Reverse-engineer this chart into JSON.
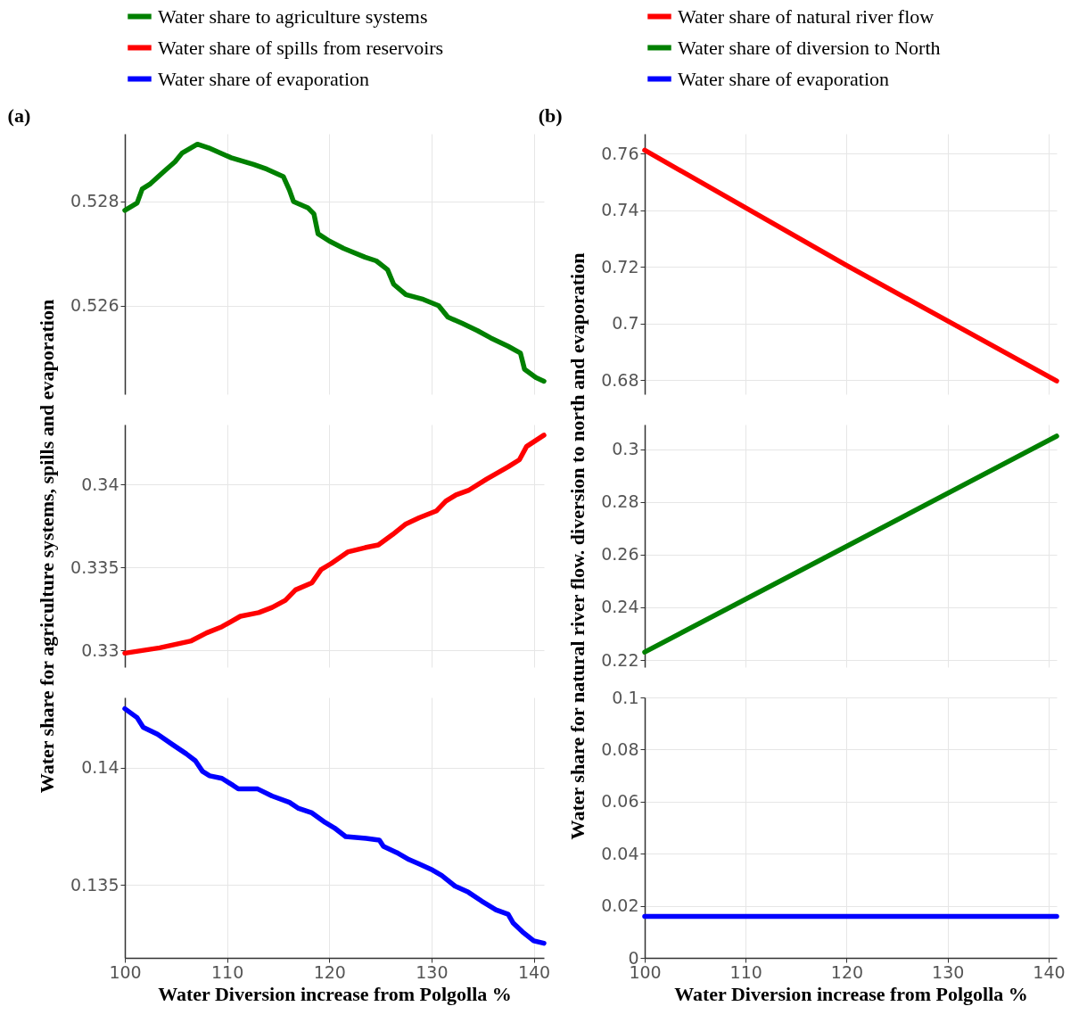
{
  "chart_data": [
    {
      "type": "line",
      "title": "(a)",
      "xlim": [
        100,
        141
      ],
      "xticks": [
        100,
        110,
        120,
        130,
        140
      ],
      "ylim": [
        0.5243,
        0.5293
      ],
      "yticks": [
        0.526,
        0.528
      ],
      "grid": true,
      "legend": "top",
      "tick_labels": "y",
      "series": [
        {
          "name": "Water share to agriculture systems",
          "color": "#008000",
          "x": [
            100,
            101.2,
            101.7,
            102.5,
            103.9,
            104.9,
            105.6,
            107.1,
            108.2,
            110.4,
            112.6,
            113.9,
            115.5,
            116.1,
            116.5,
            117.9,
            118.5,
            118.9,
            120,
            121.4,
            123.5,
            124.6,
            125.7,
            126.3,
            127.5,
            129.2,
            130.7,
            131.6,
            133,
            134.5,
            135.8,
            137.5,
            138.7,
            139.1,
            140.2,
            141
          ],
          "values": [
            0.52783,
            0.52797,
            0.52824,
            0.52834,
            0.52859,
            0.52876,
            0.52893,
            0.5291,
            0.52903,
            0.52884,
            0.52871,
            0.52862,
            0.52848,
            0.52822,
            0.528,
            0.52788,
            0.52776,
            0.52738,
            0.52724,
            0.5271,
            0.52693,
            0.52686,
            0.52669,
            0.52641,
            0.52621,
            0.52612,
            0.526,
            0.52578,
            0.52566,
            0.52552,
            0.52538,
            0.52522,
            0.52509,
            0.52478,
            0.52462,
            0.52455
          ]
        }
      ]
    },
    {
      "type": "line",
      "ylabel": "Water share for agriculture systems, spills and evaporation",
      "xlim": [
        100,
        141
      ],
      "xticks": [
        100,
        110,
        120,
        130,
        140
      ],
      "ylim": [
        0.329,
        0.3436
      ],
      "yticks": [
        0.33,
        0.335,
        0.34
      ],
      "grid": true,
      "legend": "top",
      "tick_labels": "y",
      "series": [
        {
          "name": "Water share of spills from reservoirs",
          "color": "#ff0000",
          "x": [
            100,
            103.4,
            106.5,
            108,
            109.5,
            111.3,
            113.1,
            114.4,
            115.7,
            116.7,
            118.3,
            119.2,
            120.2,
            121.8,
            123.5,
            124.8,
            126.2,
            127.5,
            128.8,
            130.5,
            131.4,
            132.4,
            133.6,
            135.4,
            137.5,
            138.6,
            139.3,
            141
          ],
          "values": [
            0.32984,
            0.33016,
            0.33058,
            0.33106,
            0.33143,
            0.33206,
            0.33228,
            0.33259,
            0.33302,
            0.33365,
            0.33407,
            0.33487,
            0.33524,
            0.33593,
            0.33619,
            0.33635,
            0.33698,
            0.33762,
            0.33799,
            0.33841,
            0.33899,
            0.33937,
            0.33963,
            0.34032,
            0.34106,
            0.34148,
            0.34228,
            0.34296
          ]
        }
      ]
    },
    {
      "type": "line",
      "xlabel": "Water Diversion increase from Polgolla  %",
      "xlim": [
        100,
        141
      ],
      "xticks": [
        100,
        110,
        120,
        130,
        140
      ],
      "ylim": [
        0.1319,
        0.143
      ],
      "yticks": [
        0.135,
        0.14
      ],
      "grid": true,
      "legend": "top",
      "series": [
        {
          "name": "Water share of evaporation",
          "color": "#0000ff",
          "x": [
            100,
            101.2,
            101.8,
            103.2,
            104.7,
            106,
            106.9,
            107.6,
            108.3,
            109.5,
            110.6,
            111.1,
            113,
            114.4,
            116.1,
            117,
            118.3,
            119.6,
            120.5,
            121.6,
            123.6,
            124.9,
            125.3,
            126.6,
            127.8,
            128.8,
            130.1,
            131,
            132.3,
            133.6,
            134.9,
            136.3,
            137.5,
            138,
            138.9,
            140,
            141
          ],
          "values": [
            0.14252,
            0.14214,
            0.14173,
            0.14143,
            0.14098,
            0.1406,
            0.1403,
            0.13985,
            0.13966,
            0.13955,
            0.13925,
            0.1391,
            0.1391,
            0.1388,
            0.13853,
            0.13827,
            0.13808,
            0.13767,
            0.13744,
            0.13707,
            0.13699,
            0.13692,
            0.13665,
            0.13639,
            0.13609,
            0.1359,
            0.13564,
            0.13541,
            0.13496,
            0.1347,
            0.13432,
            0.13395,
            0.13376,
            0.13338,
            0.13301,
            0.13263,
            0.13252
          ]
        }
      ]
    },
    {
      "type": "line",
      "title": "(b)",
      "xlim": [
        100,
        140.8
      ],
      "xticks": [
        100,
        110,
        120,
        130,
        140
      ],
      "ylim": [
        0.675,
        0.767
      ],
      "yticks": [
        0.68,
        0.7,
        0.72,
        0.74,
        0.76
      ],
      "grid": true,
      "legend": "top",
      "tick_labels": "y",
      "series": [
        {
          "name": "Water share of natural river flow",
          "color": "#ff0000",
          "x": [
            100,
            120,
            140.8
          ],
          "values": [
            0.7612,
            0.7205,
            0.6797
          ]
        }
      ]
    },
    {
      "type": "line",
      "ylabel": "Water share for natural river flow. diversion to north and evaporation",
      "xlim": [
        100,
        140.8
      ],
      "xticks": [
        100,
        110,
        120,
        130,
        140
      ],
      "ylim": [
        0.2173,
        0.3094
      ],
      "yticks": [
        0.22,
        0.24,
        0.26,
        0.28,
        0.3
      ],
      "grid": true,
      "legend": "top",
      "tick_labels": "y",
      "series": [
        {
          "name": "Water share of diversion to North",
          "color": "#008000",
          "x": [
            100,
            120,
            140.8
          ],
          "values": [
            0.223,
            0.2632,
            0.305
          ]
        }
      ]
    },
    {
      "type": "line",
      "xlabel": "Water Diversion increase from Polgolla  %",
      "xlim": [
        100,
        140.8
      ],
      "xticks": [
        100,
        110,
        120,
        130,
        140
      ],
      "ylim": [
        0,
        0.1
      ],
      "yticks": [
        0,
        0.02,
        0.04,
        0.06,
        0.08,
        0.1
      ],
      "grid": true,
      "legend": "top",
      "series": [
        {
          "name": "Water share of evaporation",
          "color": "#0000ff",
          "x": [
            100,
            140.8
          ],
          "values": [
            0.0159,
            0.0159
          ]
        }
      ]
    }
  ]
}
